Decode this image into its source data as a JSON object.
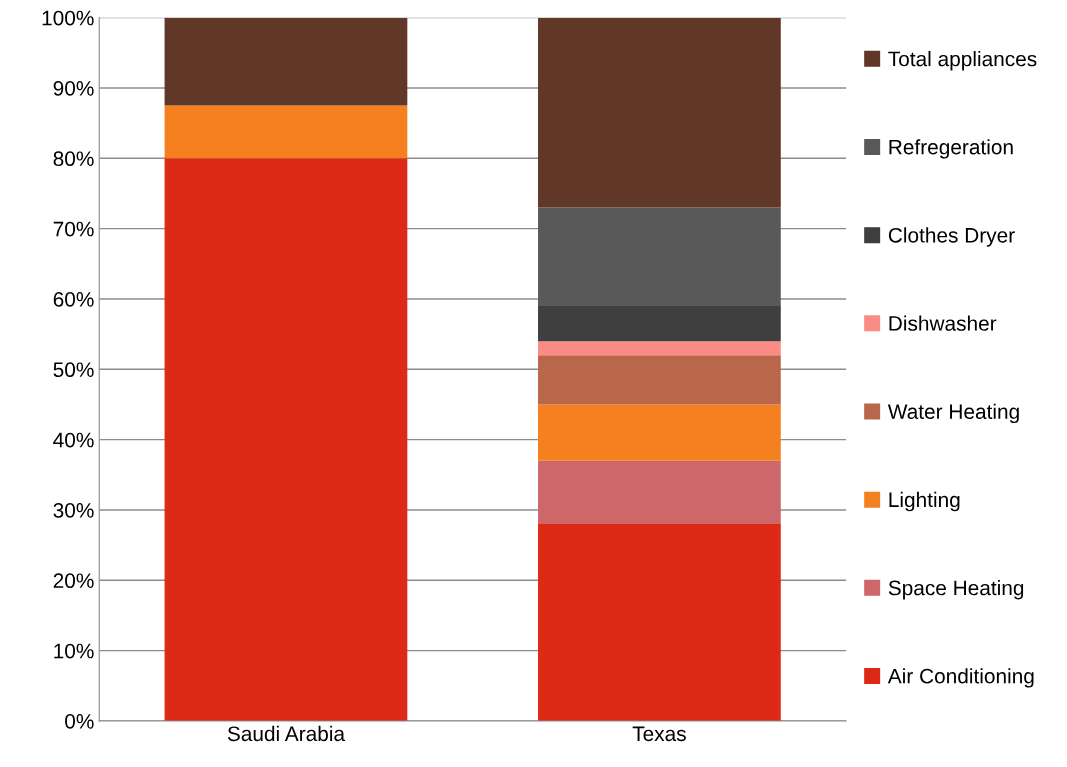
{
  "chart_data": {
    "type": "bar",
    "stacked": true,
    "categories": [
      "Saudi Arabia",
      "Texas"
    ],
    "series": [
      {
        "name": "Air Conditioning",
        "color": "#dc2a16",
        "values": [
          80,
          28
        ]
      },
      {
        "name": "Space Heating",
        "color": "#cd676a",
        "values": [
          0,
          9
        ]
      },
      {
        "name": "Lighting",
        "color": "#f5801f",
        "values": [
          7.5,
          8
        ]
      },
      {
        "name": "Water Heating",
        "color": "#b9674a",
        "values": [
          0,
          7
        ]
      },
      {
        "name": "Dishwasher",
        "color": "#fa8c85",
        "values": [
          0,
          2
        ]
      },
      {
        "name": "Clothes Dryer",
        "color": "#3f3f3f",
        "values": [
          0,
          5
        ]
      },
      {
        "name": "Refregeration",
        "color": "#595959",
        "values": [
          0,
          14
        ]
      },
      {
        "name": "Total appliances",
        "color": "#613728",
        "values": [
          12.5,
          27
        ]
      }
    ],
    "ylim": [
      0,
      100
    ],
    "yticks": [
      {
        "value": 0,
        "label": "0%"
      },
      {
        "value": 10,
        "label": "10%"
      },
      {
        "value": 20,
        "label": "20%"
      },
      {
        "value": 30,
        "label": "30%"
      },
      {
        "value": 40,
        "label": "40%"
      },
      {
        "value": 50,
        "label": "50%"
      },
      {
        "value": 60,
        "label": "60%"
      },
      {
        "value": 70,
        "label": "70%"
      },
      {
        "value": 80,
        "label": "80%"
      },
      {
        "value": 90,
        "label": "90%"
      },
      {
        "value": 100,
        "label": "100%"
      }
    ],
    "grid": "y",
    "legend": "right"
  }
}
